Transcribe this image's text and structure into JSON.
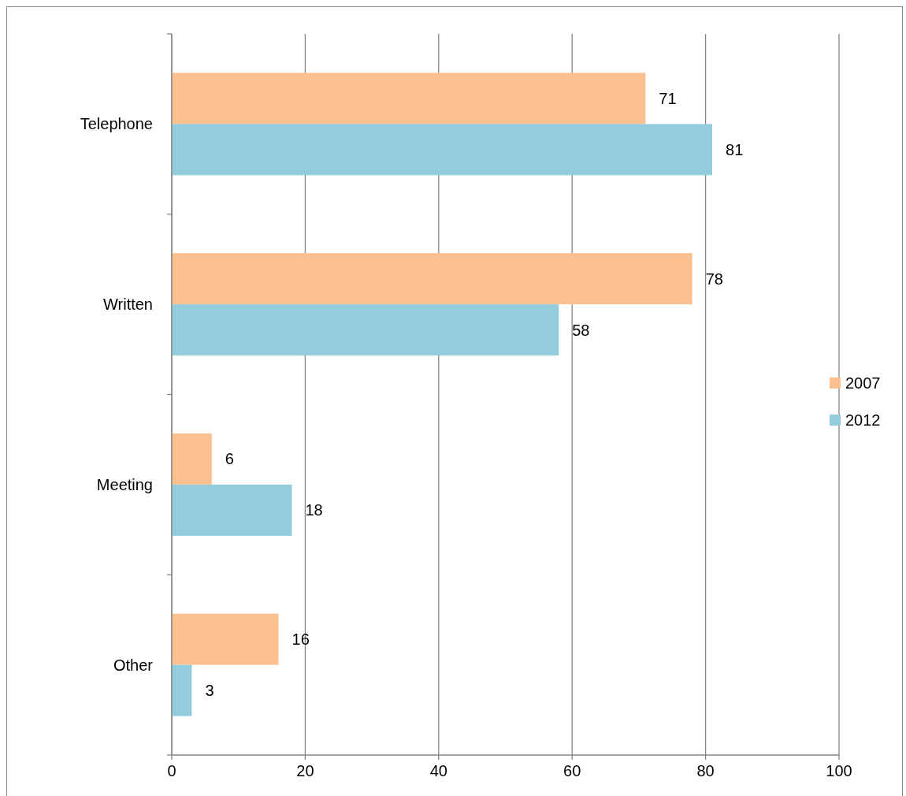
{
  "chart_data": {
    "type": "bar",
    "orientation": "horizontal",
    "categories": [
      "Telephone",
      "Written",
      "Meeting",
      "Other"
    ],
    "series": [
      {
        "name": "2007",
        "color": "#fac090",
        "values": [
          71,
          78,
          6,
          16
        ]
      },
      {
        "name": "2012",
        "color": "#93cddd",
        "values": [
          81,
          58,
          18,
          3
        ]
      }
    ],
    "xlim": [
      0,
      100
    ],
    "xticks": [
      0,
      20,
      40,
      60,
      80,
      100
    ],
    "grid": "x",
    "legend": "right",
    "data_labels": true
  }
}
